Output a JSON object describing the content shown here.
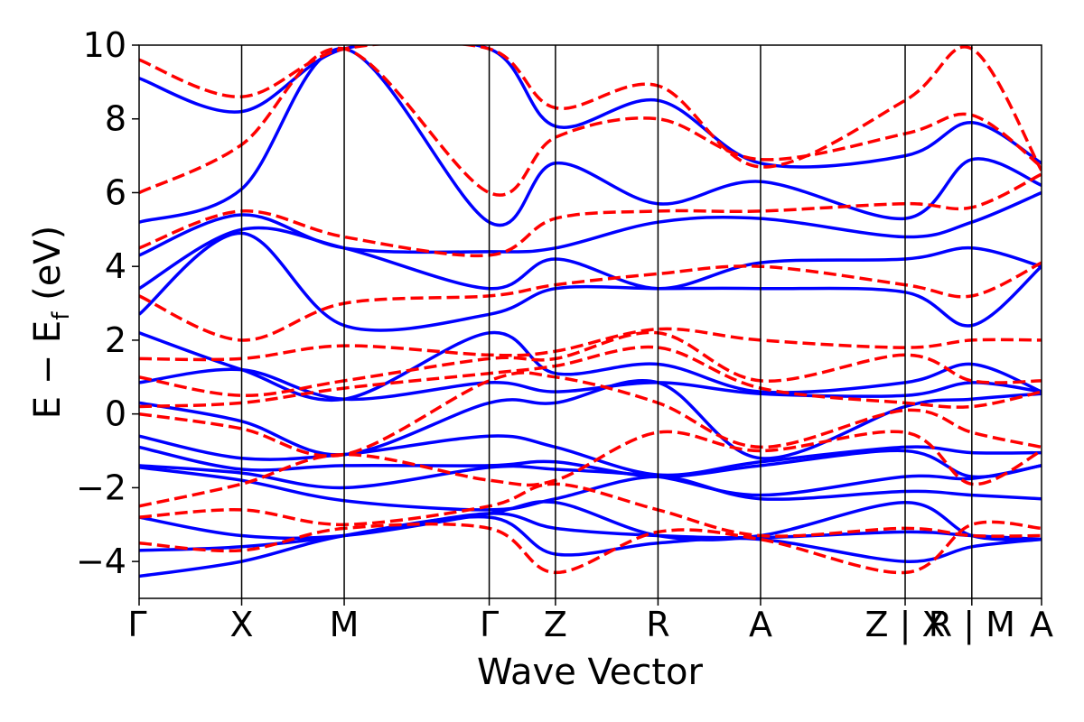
{
  "chart_data": {
    "type": "line",
    "title": "",
    "xlabel": "Wave Vector",
    "ylabel": "E − E_f (eV)",
    "ylabel_main": "E  −  E",
    "ylabel_sub": "f",
    "ylabel_unit": " (eV)",
    "ylim": [
      -5,
      10
    ],
    "yticks": [
      -4,
      -2,
      0,
      2,
      4,
      6,
      8,
      10
    ],
    "ytick_labels": [
      "−4",
      "−2",
      "0",
      "2",
      "4",
      "6",
      "8",
      "10"
    ],
    "grid": false,
    "xlim": [
      0,
      8.8
    ],
    "kpoints": [
      {
        "label": "Γ",
        "x": 0.0
      },
      {
        "label": "X",
        "x": 1.0
      },
      {
        "label": "M",
        "x": 2.0
      },
      {
        "label": "Γ",
        "x": 3.414
      },
      {
        "label": "Z",
        "x": 4.06
      },
      {
        "label": "R",
        "x": 5.06
      },
      {
        "label": "A",
        "x": 6.06
      },
      {
        "label": "Z | X",
        "x": 7.47
      },
      {
        "label": "R | M",
        "x": 8.12
      },
      {
        "label": "A",
        "x": 8.8
      }
    ],
    "segment_lines": [
      1.0,
      2.0,
      3.414,
      4.06,
      5.06,
      6.06,
      7.47,
      8.12
    ],
    "series": [
      {
        "style": "solid",
        "color": "#0000ff",
        "bands": [
          {
            "x": [
              0,
              1,
              2,
              3.414,
              4.06,
              5.06,
              6.06,
              7.47,
              8.12,
              8.8
            ],
            "y": [
              -4.4,
              -4.0,
              -3.3,
              -2.8,
              -3.8,
              -3.5,
              -3.4,
              -4.0,
              -3.6,
              -3.4
            ]
          },
          {
            "x": [
              0,
              1,
              2,
              3.414,
              4.06,
              5.06,
              6.06,
              7.47,
              8.12,
              8.8
            ],
            "y": [
              -3.7,
              -3.6,
              -3.3,
              -2.7,
              -3.1,
              -3.3,
              -3.35,
              -3.2,
              -3.3,
              -3.4
            ]
          },
          {
            "x": [
              0,
              1,
              2,
              3.414,
              4.06,
              5.06,
              6.06,
              7.47,
              8.12,
              8.8
            ],
            "y": [
              -2.8,
              -3.3,
              -3.3,
              -2.7,
              -2.4,
              -3.3,
              -3.3,
              -2.4,
              -3.3,
              -3.4
            ]
          },
          {
            "x": [
              0,
              1,
              2,
              3.414,
              4.06,
              5.06,
              6.06,
              7.47,
              8.12,
              8.8
            ],
            "y": [
              -1.45,
              -1.8,
              -2.35,
              -2.6,
              -2.3,
              -1.7,
              -2.3,
              -2.1,
              -2.2,
              -2.3
            ]
          },
          {
            "x": [
              0,
              1,
              2,
              3.414,
              4.06,
              5.06,
              6.06,
              7.47,
              8.12,
              8.8
            ],
            "y": [
              -1.4,
              -1.6,
              -2.0,
              -1.45,
              -1.5,
              -1.7,
              -2.2,
              -1.7,
              -1.75,
              -1.4
            ]
          },
          {
            "x": [
              0,
              1,
              2,
              3.414,
              4.06,
              5.06,
              6.06,
              7.47,
              8.12,
              8.8
            ],
            "y": [
              -0.9,
              -1.5,
              -1.4,
              -1.4,
              -1.3,
              -1.7,
              -1.4,
              -1.0,
              -1.7,
              -1.4
            ]
          },
          {
            "x": [
              0,
              1,
              2,
              3.414,
              4.06,
              5.06,
              6.06,
              7.47,
              8.12,
              8.8
            ],
            "y": [
              -0.6,
              -1.2,
              -1.1,
              -0.6,
              -0.9,
              -1.65,
              -1.3,
              -0.9,
              -1.05,
              -1.05
            ]
          },
          {
            "x": [
              0,
              1,
              2,
              3.414,
              4.06,
              5.06,
              6.06,
              7.47,
              8.12,
              8.8
            ],
            "y": [
              0.3,
              -0.2,
              -1.1,
              0.3,
              0.3,
              0.85,
              -1.2,
              0.2,
              0.4,
              0.55
            ]
          },
          {
            "x": [
              0,
              1,
              2,
              3.414,
              4.06,
              5.06,
              6.06,
              7.47,
              8.12,
              8.8
            ],
            "y": [
              0.85,
              1.2,
              0.4,
              0.85,
              0.6,
              0.85,
              0.55,
              0.5,
              0.85,
              0.6
            ]
          },
          {
            "x": [
              0,
              1,
              2,
              3.414,
              4.06,
              5.06,
              6.06,
              7.47,
              8.12,
              8.8
            ],
            "y": [
              2.2,
              1.2,
              0.4,
              2.2,
              1.1,
              1.35,
              0.6,
              0.85,
              1.35,
              0.6
            ]
          },
          {
            "x": [
              0,
              1,
              2,
              3.414,
              4.06,
              5.06,
              6.06,
              7.47,
              8.12,
              8.8
            ],
            "y": [
              2.7,
              4.9,
              2.4,
              2.7,
              3.4,
              3.4,
              3.4,
              3.3,
              2.4,
              4.0
            ]
          },
          {
            "x": [
              0,
              1,
              2,
              3.414,
              4.06,
              5.06,
              6.06,
              7.47,
              8.12,
              8.8
            ],
            "y": [
              3.4,
              5.0,
              4.5,
              3.4,
              4.2,
              3.4,
              4.1,
              4.2,
              4.5,
              4.0
            ]
          },
          {
            "x": [
              0,
              1,
              2,
              3.414,
              4.06,
              5.06,
              6.06,
              7.47,
              8.12,
              8.8
            ],
            "y": [
              4.3,
              5.4,
              4.5,
              4.4,
              4.5,
              5.2,
              5.3,
              4.8,
              5.2,
              6.0
            ]
          },
          {
            "x": [
              0,
              1,
              2,
              3.414,
              4.06,
              5.06,
              6.06,
              7.47,
              8.12,
              8.8
            ],
            "y": [
              5.2,
              6.1,
              9.9,
              5.2,
              6.8,
              5.7,
              6.3,
              5.3,
              6.9,
              6.2
            ]
          },
          {
            "x": [
              0,
              1,
              2,
              3.414,
              4.06,
              5.06,
              6.06,
              7.47,
              8.12,
              8.8
            ],
            "y": [
              9.1,
              8.2,
              9.9,
              9.9,
              7.8,
              8.5,
              6.8,
              7.0,
              7.9,
              6.8
            ]
          }
        ]
      },
      {
        "style": "dashed",
        "color": "#ff0000",
        "bands": [
          {
            "x": [
              0,
              1,
              2,
              3.414,
              4.06,
              5.06,
              6.06,
              7.47,
              8.12,
              8.8
            ],
            "y": [
              -3.5,
              -3.7,
              -3.1,
              -3.1,
              -4.3,
              -3.2,
              -3.4,
              -4.3,
              -3.0,
              -3.1
            ]
          },
          {
            "x": [
              0,
              1,
              2,
              3.414,
              4.06,
              5.06,
              6.06,
              7.47,
              8.12,
              8.8
            ],
            "y": [
              -2.8,
              -2.6,
              -3.0,
              -2.5,
              -1.9,
              -2.6,
              -3.3,
              -3.1,
              -3.3,
              -3.3
            ]
          },
          {
            "x": [
              0,
              1,
              2,
              3.414,
              4.06,
              5.06,
              6.06,
              7.47,
              8.12,
              8.8
            ],
            "y": [
              -2.5,
              -1.9,
              -1.1,
              -1.8,
              -1.8,
              -0.5,
              -1.0,
              -0.5,
              -1.9,
              -1.0
            ]
          },
          {
            "x": [
              0,
              1,
              2,
              3.414,
              4.06,
              5.06,
              6.06,
              7.47,
              8.12,
              8.8
            ],
            "y": [
              0.0,
              -0.4,
              -1.1,
              0.9,
              1.0,
              0.3,
              -0.9,
              0.1,
              -0.5,
              -0.9
            ]
          },
          {
            "x": [
              0,
              1,
              2,
              3.414,
              4.06,
              5.06,
              6.06,
              7.47,
              8.12,
              8.8
            ],
            "y": [
              0.2,
              0.3,
              0.7,
              1.1,
              1.3,
              1.8,
              0.7,
              0.3,
              0.2,
              0.6
            ]
          },
          {
            "x": [
              0,
              1,
              2,
              3.414,
              4.06,
              5.06,
              6.06,
              7.47,
              8.12,
              8.8
            ],
            "y": [
              1.0,
              0.5,
              0.9,
              1.5,
              1.5,
              2.2,
              0.9,
              1.6,
              0.9,
              0.9
            ]
          },
          {
            "x": [
              0,
              1,
              2,
              3.414,
              4.06,
              5.06,
              6.06,
              7.47,
              8.12,
              8.8
            ],
            "y": [
              1.5,
              1.5,
              1.85,
              1.6,
              1.7,
              2.3,
              2.0,
              1.8,
              2.0,
              2.0
            ]
          },
          {
            "x": [
              0,
              1,
              2,
              3.414,
              4.06,
              5.06,
              6.06,
              7.47,
              8.12,
              8.8
            ],
            "y": [
              3.2,
              2.0,
              3.0,
              3.2,
              3.5,
              3.8,
              4.0,
              3.5,
              3.2,
              4.1
            ]
          },
          {
            "x": [
              0,
              1,
              2,
              3.414,
              4.06,
              5.06,
              6.06,
              7.47,
              8.12,
              8.8
            ],
            "y": [
              4.5,
              5.5,
              4.8,
              4.3,
              5.3,
              5.5,
              5.5,
              5.7,
              5.6,
              6.5
            ]
          },
          {
            "x": [
              0,
              1,
              2,
              3.414,
              4.06,
              5.06,
              6.06,
              7.47,
              8.12,
              8.8
            ],
            "y": [
              6.0,
              7.3,
              9.9,
              6.0,
              7.5,
              8.0,
              6.9,
              7.6,
              8.1,
              6.7
            ]
          },
          {
            "x": [
              0,
              1,
              2,
              3.414,
              4.06,
              5.06,
              6.06,
              7.47,
              8.12,
              8.8
            ],
            "y": [
              9.6,
              8.6,
              9.9,
              9.9,
              8.3,
              8.9,
              6.7,
              8.5,
              9.9,
              6.6
            ]
          }
        ]
      }
    ]
  }
}
